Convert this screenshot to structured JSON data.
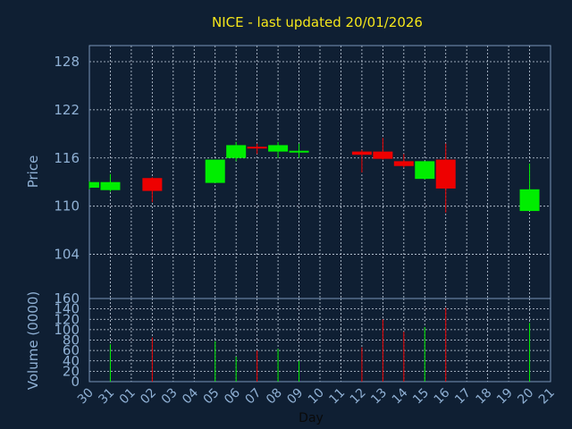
{
  "chart_data": {
    "type": "candlestick",
    "title": "NICE - last updated 20/01/2026",
    "xlabel": "Day",
    "price_panel": {
      "ylabel": "Price",
      "ylim": [
        98.5,
        130
      ],
      "yticks": [
        104,
        110,
        116,
        122,
        128
      ],
      "grid": true
    },
    "volume_panel": {
      "ylabel": "Volume (0000)",
      "ylim": [
        0,
        160
      ],
      "yticks": [
        0,
        20,
        40,
        60,
        80,
        100,
        120,
        140,
        160
      ],
      "grid": true
    },
    "x_tick_labels": [
      "30",
      "31",
      "01",
      "02",
      "03",
      "04",
      "05",
      "06",
      "07",
      "08",
      "09",
      "10",
      "11",
      "12",
      "13",
      "14",
      "15",
      "16",
      "17",
      "18",
      "19",
      "20",
      "21"
    ],
    "colors": {
      "up": "#00ee00",
      "down": "#ee0000"
    },
    "candles": [
      {
        "x": 0,
        "open": 112.3,
        "high": 113.1,
        "low": 112.1,
        "close": 113.0,
        "volume": 0
      },
      {
        "x": 1,
        "open": 112.0,
        "high": 114.0,
        "low": 111.8,
        "close": 113.0,
        "volume": 72
      },
      {
        "x": 3,
        "open": 113.5,
        "high": 113.6,
        "low": 110.5,
        "close": 111.9,
        "volume": 85
      },
      {
        "x": 6,
        "open": 112.9,
        "high": 115.8,
        "low": 112.9,
        "close": 115.8,
        "volume": 78
      },
      {
        "x": 7,
        "open": 116.0,
        "high": 118.0,
        "low": 115.6,
        "close": 117.6,
        "volume": 48
      },
      {
        "x": 8,
        "open": 117.4,
        "high": 117.8,
        "low": 116.5,
        "close": 117.2,
        "volume": 60
      },
      {
        "x": 9,
        "open": 116.8,
        "high": 118.0,
        "low": 116.0,
        "close": 117.6,
        "volume": 63
      },
      {
        "x": 10,
        "open": 116.7,
        "high": 117.8,
        "low": 116.0,
        "close": 116.9,
        "volume": 40
      },
      {
        "x": 13,
        "open": 116.8,
        "high": 117.0,
        "low": 114.2,
        "close": 116.4,
        "volume": 66
      },
      {
        "x": 14,
        "open": 116.8,
        "high": 118.5,
        "low": 115.8,
        "close": 115.9,
        "volume": 120
      },
      {
        "x": 15,
        "open": 115.6,
        "high": 116.5,
        "low": 114.8,
        "close": 115.0,
        "volume": 96
      },
      {
        "x": 16,
        "open": 113.4,
        "high": 115.6,
        "low": 113.3,
        "close": 115.6,
        "volume": 105
      },
      {
        "x": 17,
        "open": 115.8,
        "high": 117.8,
        "low": 109.2,
        "close": 112.2,
        "volume": 142
      },
      {
        "x": 21,
        "open": 109.4,
        "high": 115.3,
        "low": 109.4,
        "close": 112.1,
        "volume": 113
      }
    ]
  }
}
